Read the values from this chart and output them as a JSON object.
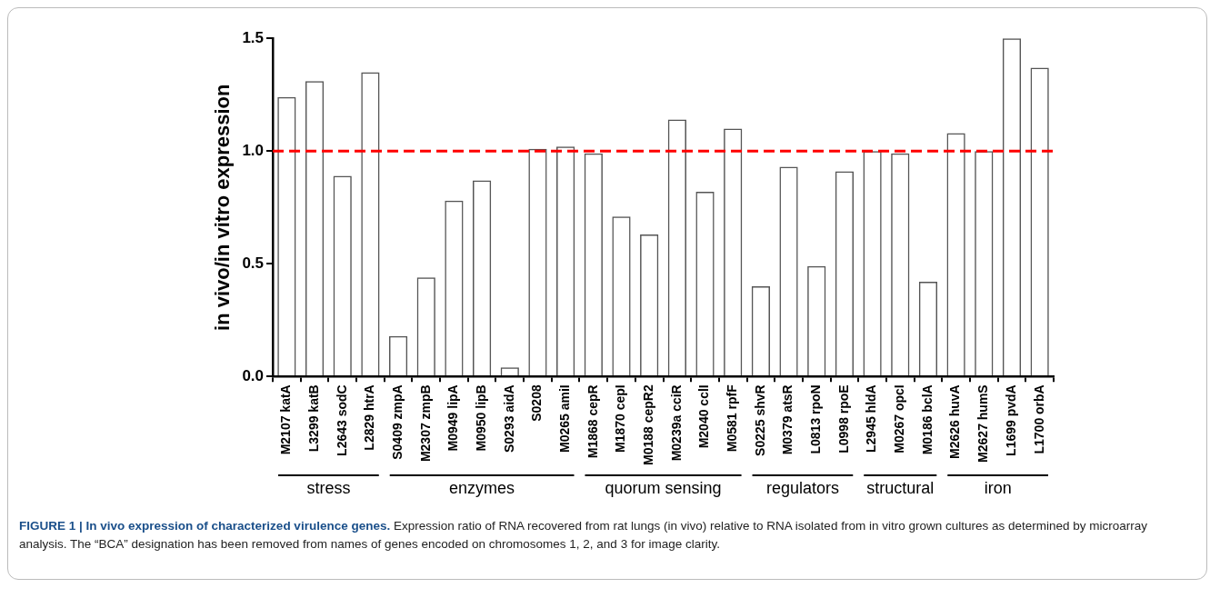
{
  "chart_data": {
    "type": "bar",
    "title": "FIGURE 1 | In vivo expression of characterized virulence genes.",
    "ylabel": "in vivo/in vitro expression",
    "categories": [
      "M2107 katA",
      "L3299 katB",
      "L2643 sodC",
      "L2829 htrA",
      "S0409 zmpA",
      "M2307 zmpB",
      "M0949 lipA",
      "M0950 lipB",
      "S0293 aidA",
      "S0208",
      "M0265 amiI",
      "M1868 cepR",
      "M1870 cepI",
      "M0188 cepR2",
      "M0239a cciR",
      "M2040 cclI",
      "M0581 rpfF",
      "S0225 shvR",
      "M0379 atsR",
      "L0813 rpoN",
      "L0998 rpoE",
      "L2945 hldA",
      "M0267 opcI",
      "M0186 bclA",
      "M2626 huvA",
      "M2627 humS",
      "L1699 pvdA",
      "L1700 orbA"
    ],
    "values": [
      1.24,
      1.31,
      0.89,
      1.35,
      0.18,
      0.44,
      0.78,
      0.87,
      0.04,
      1.01,
      1.02,
      0.99,
      0.71,
      0.63,
      1.14,
      0.82,
      1.1,
      0.4,
      0.93,
      0.49,
      0.91,
      1.0,
      0.99,
      0.42,
      1.08,
      1.0,
      1.5,
      1.37
    ],
    "color": "#555555",
    "ylim": [
      0,
      1.5
    ],
    "yticks": [
      {
        "value": 0,
        "label": "0.0"
      },
      {
        "value": 0.5,
        "label": "0.5"
      },
      {
        "value": 1,
        "label": "1.0"
      },
      {
        "value": 1.5,
        "label": "1.5"
      }
    ],
    "ref_lines": [
      {
        "axis": "y",
        "value": 1,
        "color": "#ff0000",
        "line_style": "dashed"
      }
    ],
    "annotations": [
      "stress",
      "enzymes",
      "quorum sensing",
      "regulators",
      "structural",
      "iron",
      "Expression ratio of RNA recovered from rat lungs (in vivo) relative to RNA isolated from in vitro grown cultures as determined by microarray analysis. The “BCA” designation has been removed from names of genes encoded on chromosomes 1, 2, and 3 for image clarity."
    ],
    "grid": false,
    "legend": false
  }
}
